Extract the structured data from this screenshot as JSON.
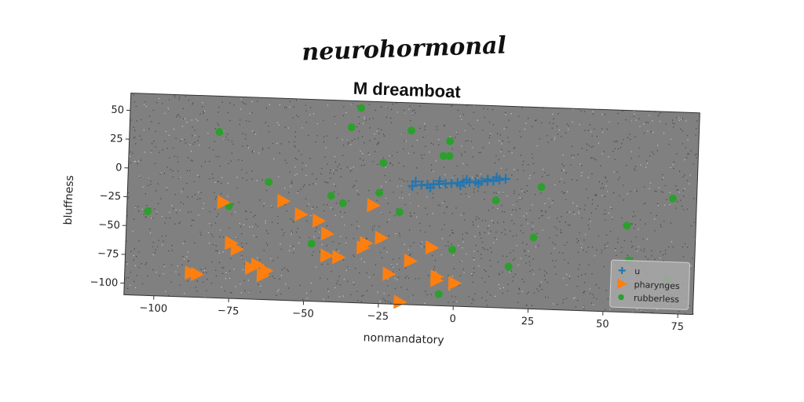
{
  "chart_data": {
    "type": "scatter",
    "suptitle": "neurohormonal",
    "title": "M dreamboat",
    "xlabel": "nonmandatory",
    "ylabel": "bluffness",
    "xlim": [
      -110,
      80
    ],
    "ylim": [
      -110,
      65
    ],
    "xticks": [
      -100,
      -75,
      -50,
      -25,
      0,
      25,
      50,
      75
    ],
    "yticks": [
      50,
      25,
      0,
      -25,
      -50,
      -75,
      -100
    ],
    "grid": false,
    "legend_position": "bottom-right",
    "series": [
      {
        "name": "u",
        "marker": "plus",
        "color": "#1f77b4",
        "points": [
          [
            -15,
            -7
          ],
          [
            -12,
            -6
          ],
          [
            -10,
            -5.5
          ],
          [
            -8,
            -5
          ],
          [
            -6,
            -4.5
          ],
          [
            -4,
            -4
          ],
          [
            -2,
            -3.5
          ],
          [
            0,
            -3
          ],
          [
            2,
            -2.5
          ],
          [
            4,
            -2
          ],
          [
            6,
            -1.5
          ],
          [
            8,
            -1
          ],
          [
            10,
            -0.5
          ],
          [
            12,
            0
          ],
          [
            14,
            1
          ],
          [
            16,
            2
          ],
          [
            -14,
            -3
          ],
          [
            -6,
            -2
          ],
          [
            3,
            0
          ],
          [
            10,
            1
          ],
          [
            13,
            3
          ],
          [
            -9,
            -8
          ],
          [
            1,
            -5
          ],
          [
            7,
            -3
          ]
        ]
      },
      {
        "name": "pharynges",
        "marker": "triangle-right",
        "color": "#ff7f0e",
        "points": [
          [
            -88,
            -89
          ],
          [
            -86,
            -90
          ],
          [
            -78,
            -27
          ],
          [
            -75,
            -62
          ],
          [
            -73,
            -67
          ],
          [
            -68,
            -83
          ],
          [
            -66,
            -80
          ],
          [
            -64,
            -89
          ],
          [
            -63,
            -85
          ],
          [
            -58,
            -24
          ],
          [
            -52,
            -35
          ],
          [
            -46,
            -40
          ],
          [
            -43,
            -51
          ],
          [
            -43,
            -70
          ],
          [
            -39,
            -71
          ],
          [
            -31,
            -62
          ],
          [
            -30,
            -58
          ],
          [
            -28,
            -25
          ],
          [
            -25,
            -53
          ],
          [
            -22,
            -84
          ],
          [
            -18,
            -108
          ],
          [
            -15,
            -72
          ],
          [
            -8,
            -60
          ],
          [
            -6,
            -85
          ],
          [
            -6,
            -88
          ],
          [
            0,
            -90
          ]
        ]
      },
      {
        "name": "rubberless",
        "marker": "circle",
        "color": "#2ca02c",
        "points": [
          [
            -103,
            -37
          ],
          [
            -80,
            34
          ],
          [
            -76,
            -30
          ],
          [
            -63,
            -8
          ],
          [
            -48,
            -60
          ],
          [
            -42,
            -18
          ],
          [
            -38,
            -24
          ],
          [
            -36,
            42
          ],
          [
            -33,
            59
          ],
          [
            -25,
            12
          ],
          [
            -26,
            -14
          ],
          [
            -19,
            -30
          ],
          [
            -16,
            41
          ],
          [
            -5,
            20
          ],
          [
            -3,
            20
          ],
          [
            -3,
            33
          ],
          [
            -5,
            -100
          ],
          [
            -1,
            -61
          ],
          [
            13,
            -17
          ],
          [
            18,
            -74
          ],
          [
            26,
            -48
          ],
          [
            28,
            -4
          ],
          [
            57,
            -35
          ],
          [
            58,
            -65
          ],
          [
            72,
            -10
          ],
          [
            71,
            -81
          ]
        ]
      }
    ]
  }
}
